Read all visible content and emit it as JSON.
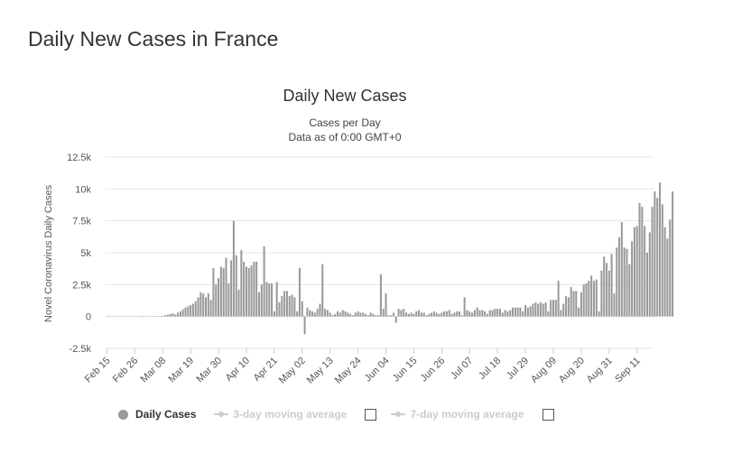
{
  "page_title": "Daily New Cases in France",
  "chart_data": {
    "type": "bar",
    "title": "Daily New Cases",
    "subtitle": [
      "Cases per Day",
      "Data as of 0:00 GMT+0"
    ],
    "xlabel": "",
    "ylabel": "Novel Coronavirus Daily Cases",
    "ylim": [
      -2500,
      12500
    ],
    "yticks": [
      -2500,
      0,
      2500,
      5000,
      7500,
      10000,
      12500
    ],
    "ytick_labels": [
      "-2.5k",
      "0",
      "2.5k",
      "5k",
      "7.5k",
      "10k",
      "12.5k"
    ],
    "grid": true,
    "start_date": "Feb 15",
    "num_days": 216,
    "xtick_labels": [
      "Feb 15",
      "Feb 26",
      "Mar 08",
      "Mar 19",
      "Mar 30",
      "Apr 10",
      "Apr 21",
      "May 02",
      "May 13",
      "May 24",
      "Jun 04",
      "Jun 15",
      "Jun 26",
      "Jul 07",
      "Jul 18",
      "Jul 29",
      "Aug 09",
      "Aug 20",
      "Aug 31",
      "Sep 11"
    ],
    "xtick_every": 11,
    "series": [
      {
        "name": "Daily Cases",
        "color": "#999999",
        "values": [
          0,
          0,
          0,
          0,
          0,
          0,
          0,
          0,
          0,
          0,
          0,
          0,
          0,
          0,
          1,
          0,
          0,
          0,
          0,
          0,
          0,
          30,
          50,
          100,
          150,
          200,
          250,
          150,
          300,
          400,
          550,
          700,
          800,
          900,
          1000,
          1200,
          1500,
          1900,
          1800,
          1500,
          1800,
          1300,
          3800,
          2500,
          3000,
          3900,
          3800,
          4600,
          2600,
          4400,
          7500,
          4800,
          2100,
          5200,
          4300,
          3900,
          3800,
          4000,
          4300,
          4300,
          1900,
          2500,
          5500,
          2700,
          2600,
          2600,
          400,
          2700,
          1100,
          1600,
          2000,
          2000,
          1600,
          1700,
          1500,
          400,
          3800,
          1200,
          -1400,
          700,
          500,
          400,
          300,
          600,
          1000,
          4100,
          600,
          500,
          300,
          100,
          200,
          400,
          300,
          500,
          400,
          300,
          200,
          100,
          300,
          400,
          300,
          300,
          200,
          100,
          300,
          200,
          100,
          100,
          3300,
          600,
          1800,
          100,
          100,
          300,
          -500,
          600,
          500,
          600,
          300,
          200,
          300,
          200,
          400,
          500,
          300,
          300,
          100,
          200,
          300,
          400,
          300,
          200,
          300,
          400,
          400,
          500,
          200,
          300,
          400,
          400,
          100,
          1500,
          500,
          400,
          300,
          500,
          700,
          500,
          500,
          400,
          200,
          500,
          500,
          600,
          600,
          600,
          300,
          500,
          400,
          500,
          700,
          700,
          700,
          700,
          400,
          900,
          700,
          800,
          1000,
          1100,
          1000,
          1100,
          1000,
          1100,
          400,
          1300,
          1300,
          1300,
          2800,
          500,
          1000,
          1600,
          1500,
          2300,
          2000,
          2000,
          700,
          1900,
          2500,
          2600,
          2800,
          3200,
          2800,
          2900,
          400,
          3600,
          4700,
          4200,
          3600,
          4900,
          1800,
          5400,
          6200,
          7400,
          5400,
          5300,
          4100,
          5900,
          7000,
          7100,
          8900,
          8600,
          7100,
          5000,
          6600,
          8600,
          9800,
          9300,
          10500,
          8800,
          7000,
          6100,
          7600,
          9800
        ]
      },
      {
        "name": "3-day moving average",
        "color": "#cccccc",
        "visible": false
      },
      {
        "name": "7-day moving average",
        "color": "#cccccc",
        "visible": false
      }
    ]
  }
}
